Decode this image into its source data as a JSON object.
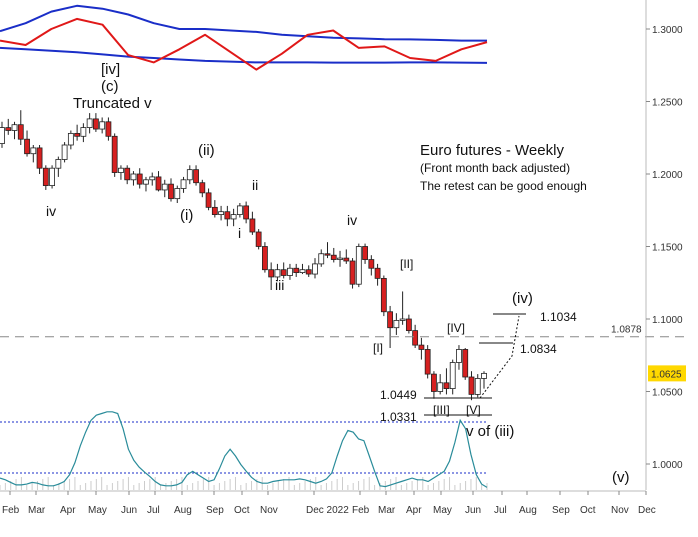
{
  "chart_data": {
    "type": "candlestick",
    "annotations": {
      "title": "Euro futures - Weekly",
      "subtitle": "(Front month back adjusted)",
      "note": "The retest can be good enough"
    },
    "yaxis": {
      "ticks": [
        "1.3000",
        "1.2500",
        "1.2000",
        "1.1500",
        "1.1000",
        "1.0500",
        "1.0000"
      ],
      "tick_values": [
        1.3,
        1.25,
        1.2,
        1.15,
        1.1,
        1.05,
        1.0
      ],
      "range": [
        0.975,
        1.325
      ]
    },
    "xaxis": {
      "labels": [
        "Feb",
        "Mar",
        "Apr",
        "May",
        "Jun",
        "Jul",
        "Aug",
        "Sep",
        "Oct",
        "Nov",
        "Dec 2022",
        "Feb",
        "Mar",
        "Apr",
        "May",
        "Jun",
        "Jul",
        "Aug",
        "Sep",
        "Oct",
        "Nov",
        "Dec"
      ],
      "label_x": [
        2,
        28,
        60,
        88,
        121,
        147,
        174,
        206,
        234,
        260,
        306,
        352,
        378,
        406,
        433,
        465,
        494,
        519,
        552,
        580,
        611,
        638
      ]
    },
    "price_levels": [
      {
        "label": "1.0878",
        "value": 1.0878,
        "style": "dashed",
        "color": "#999999"
      },
      {
        "label": "1.0625",
        "value": 1.0625,
        "style": "badge",
        "color": "#ffd800"
      }
    ],
    "target_labels": [
      {
        "label": "1.1034",
        "value": 1.1034
      },
      {
        "label": "1.0834",
        "value": 1.0834
      },
      {
        "label": "1.0449",
        "value": 1.0449
      },
      {
        "label": "1.0331",
        "value": 1.0331
      }
    ],
    "wave_labels": [
      {
        "label": "[iv]",
        "value": 1.286
      },
      {
        "label": "(c)",
        "value": 1.269
      },
      {
        "label": "Truncated v",
        "value": 1.25
      },
      {
        "label": "iv",
        "value": 1.18
      },
      {
        "label": "(ii)",
        "value": 1.218
      },
      {
        "label": "(i)",
        "value": 1.178
      },
      {
        "label": "ii",
        "value": 1.193
      },
      {
        "label": "i",
        "value": 1.164
      },
      {
        "label": "iii",
        "value": 1.123
      },
      {
        "label": "iv",
        "value": 1.17
      },
      {
        "label": "[II]",
        "value": 1.133
      },
      {
        "label": "[I]",
        "value": 1.08
      },
      {
        "label": "[IV]",
        "value": 1.093
      },
      {
        "label": "[III]",
        "value": 1.038
      },
      {
        "label": "[V]",
        "value": 1.038
      },
      {
        "label": "v of (iii)",
        "value": 1.022
      },
      {
        "label": "(iv)",
        "value": 1.114
      },
      {
        "label": "(v)",
        "value": 0.985
      }
    ],
    "weekly_ohlc": [
      [
        1.221,
        1.236,
        1.218,
        1.232
      ],
      [
        1.232,
        1.238,
        1.227,
        1.23
      ],
      [
        1.23,
        1.236,
        1.224,
        1.234
      ],
      [
        1.234,
        1.244,
        1.22,
        1.224
      ],
      [
        1.224,
        1.23,
        1.212,
        1.214
      ],
      [
        1.214,
        1.22,
        1.208,
        1.218
      ],
      [
        1.218,
        1.22,
        1.2,
        1.204
      ],
      [
        1.204,
        1.206,
        1.189,
        1.192
      ],
      [
        1.192,
        1.206,
        1.19,
        1.204
      ],
      [
        1.204,
        1.212,
        1.198,
        1.21
      ],
      [
        1.21,
        1.222,
        1.208,
        1.22
      ],
      [
        1.22,
        1.23,
        1.217,
        1.228
      ],
      [
        1.228,
        1.234,
        1.223,
        1.226
      ],
      [
        1.226,
        1.235,
        1.222,
        1.232
      ],
      [
        1.232,
        1.242,
        1.228,
        1.238
      ],
      [
        1.238,
        1.242,
        1.229,
        1.231
      ],
      [
        1.231,
        1.239,
        1.228,
        1.236
      ],
      [
        1.236,
        1.239,
        1.223,
        1.226
      ],
      [
        1.226,
        1.228,
        1.198,
        1.201
      ],
      [
        1.201,
        1.206,
        1.196,
        1.204
      ],
      [
        1.204,
        1.206,
        1.193,
        1.196
      ],
      [
        1.196,
        1.202,
        1.192,
        1.2
      ],
      [
        1.2,
        1.204,
        1.19,
        1.193
      ],
      [
        1.193,
        1.198,
        1.188,
        1.196
      ],
      [
        1.196,
        1.201,
        1.192,
        1.198
      ],
      [
        1.198,
        1.202,
        1.188,
        1.189
      ],
      [
        1.189,
        1.196,
        1.184,
        1.193
      ],
      [
        1.193,
        1.197,
        1.181,
        1.183
      ],
      [
        1.183,
        1.192,
        1.18,
        1.19
      ],
      [
        1.19,
        1.198,
        1.187,
        1.196
      ],
      [
        1.196,
        1.206,
        1.193,
        1.203
      ],
      [
        1.203,
        1.206,
        1.192,
        1.194
      ],
      [
        1.194,
        1.196,
        1.184,
        1.187
      ],
      [
        1.187,
        1.19,
        1.175,
        1.177
      ],
      [
        1.177,
        1.182,
        1.17,
        1.172
      ],
      [
        1.172,
        1.178,
        1.168,
        1.174
      ],
      [
        1.174,
        1.178,
        1.164,
        1.169
      ],
      [
        1.169,
        1.176,
        1.164,
        1.172
      ],
      [
        1.172,
        1.18,
        1.17,
        1.178
      ],
      [
        1.178,
        1.181,
        1.166,
        1.169
      ],
      [
        1.169,
        1.174,
        1.158,
        1.16
      ],
      [
        1.16,
        1.162,
        1.148,
        1.15
      ],
      [
        1.15,
        1.153,
        1.132,
        1.134
      ],
      [
        1.134,
        1.139,
        1.12,
        1.129
      ],
      [
        1.129,
        1.138,
        1.126,
        1.134
      ],
      [
        1.134,
        1.139,
        1.128,
        1.13
      ],
      [
        1.13,
        1.138,
        1.127,
        1.135
      ],
      [
        1.135,
        1.138,
        1.129,
        1.132
      ],
      [
        1.132,
        1.138,
        1.131,
        1.134
      ],
      [
        1.134,
        1.137,
        1.129,
        1.131
      ],
      [
        1.131,
        1.142,
        1.128,
        1.138
      ],
      [
        1.138,
        1.148,
        1.136,
        1.145
      ],
      [
        1.145,
        1.153,
        1.142,
        1.144
      ],
      [
        1.144,
        1.149,
        1.139,
        1.141
      ],
      [
        1.141,
        1.147,
        1.136,
        1.142
      ],
      [
        1.142,
        1.148,
        1.138,
        1.14
      ],
      [
        1.14,
        1.142,
        1.121,
        1.124
      ],
      [
        1.124,
        1.152,
        1.122,
        1.15
      ],
      [
        1.15,
        1.152,
        1.138,
        1.141
      ],
      [
        1.141,
        1.144,
        1.13,
        1.135
      ],
      [
        1.135,
        1.138,
        1.123,
        1.128
      ],
      [
        1.128,
        1.13,
        1.102,
        1.105
      ],
      [
        1.105,
        1.109,
        1.08,
        1.094
      ],
      [
        1.094,
        1.104,
        1.089,
        1.099
      ],
      [
        1.099,
        1.119,
        1.096,
        1.1
      ],
      [
        1.1,
        1.103,
        1.09,
        1.092
      ],
      [
        1.092,
        1.096,
        1.08,
        1.082
      ],
      [
        1.082,
        1.087,
        1.072,
        1.079
      ],
      [
        1.079,
        1.082,
        1.059,
        1.062
      ],
      [
        1.062,
        1.064,
        1.045,
        1.05
      ],
      [
        1.05,
        1.062,
        1.048,
        1.056
      ],
      [
        1.056,
        1.066,
        1.048,
        1.052
      ],
      [
        1.052,
        1.072,
        1.048,
        1.07
      ],
      [
        1.07,
        1.082,
        1.065,
        1.079
      ],
      [
        1.079,
        1.08,
        1.058,
        1.06
      ],
      [
        1.06,
        1.064,
        1.044,
        1.048
      ],
      [
        1.048,
        1.062,
        1.046,
        1.059
      ],
      [
        1.059,
        1.064,
        1.052,
        1.0625
      ]
    ],
    "oscillator": {
      "levels": [
        0.8,
        0.2
      ],
      "values": [
        0.14,
        0.12,
        0.09,
        0.06,
        0.06,
        0.07,
        0.09,
        0.08,
        0.06,
        0.05,
        0.05,
        0.07,
        0.1,
        0.18,
        0.32,
        0.52,
        0.68,
        0.82,
        0.88,
        0.9,
        0.92,
        0.92,
        0.9,
        0.72,
        0.48,
        0.35,
        0.27,
        0.21,
        0.16,
        0.1,
        0.06,
        0.05,
        0.05,
        0.06,
        0.09,
        0.18,
        0.22,
        0.18,
        0.14,
        0.1,
        0.12,
        0.25,
        0.4,
        0.48,
        0.4,
        0.3,
        0.22,
        0.15,
        0.1,
        0.08,
        0.08,
        0.1,
        0.11,
        0.12,
        0.12,
        0.12,
        0.13,
        0.12,
        0.1,
        0.08,
        0.1,
        0.13,
        0.2,
        0.4,
        0.58,
        0.7,
        0.68,
        0.6,
        0.58,
        0.4,
        0.22,
        0.05,
        0.04,
        0.06,
        0.08,
        0.1,
        0.12,
        0.14,
        0.12,
        0.12,
        0.1,
        0.14,
        0.18,
        0.22,
        0.34,
        0.56,
        0.82,
        0.72,
        0.42,
        0.18,
        0.07,
        0.03
      ]
    },
    "upper_panel": {
      "blue_upper": [
        1.2985,
        1.304,
        1.312,
        1.316,
        1.314,
        1.31,
        1.304,
        1.3,
        1.3,
        1.299,
        1.298,
        1.296,
        1.295,
        1.294,
        1.2935,
        1.293,
        1.2928,
        1.2925,
        1.292,
        1.292
      ],
      "blue_lower": [
        1.287,
        1.286,
        1.285,
        1.284,
        1.2825,
        1.281,
        1.28,
        1.279,
        1.278,
        1.2775,
        1.277,
        1.277,
        1.277,
        1.2768,
        1.2768,
        1.2768,
        1.277,
        1.277,
        1.2768,
        1.2766
      ],
      "red_line": [
        1.292,
        1.289,
        1.3,
        1.307,
        1.303,
        1.282,
        1.277,
        1.286,
        1.296,
        1.284,
        1.272,
        1.283,
        1.296,
        1.299,
        1.287,
        1.288,
        1.28,
        1.278,
        1.286,
        1.291
      ]
    }
  }
}
